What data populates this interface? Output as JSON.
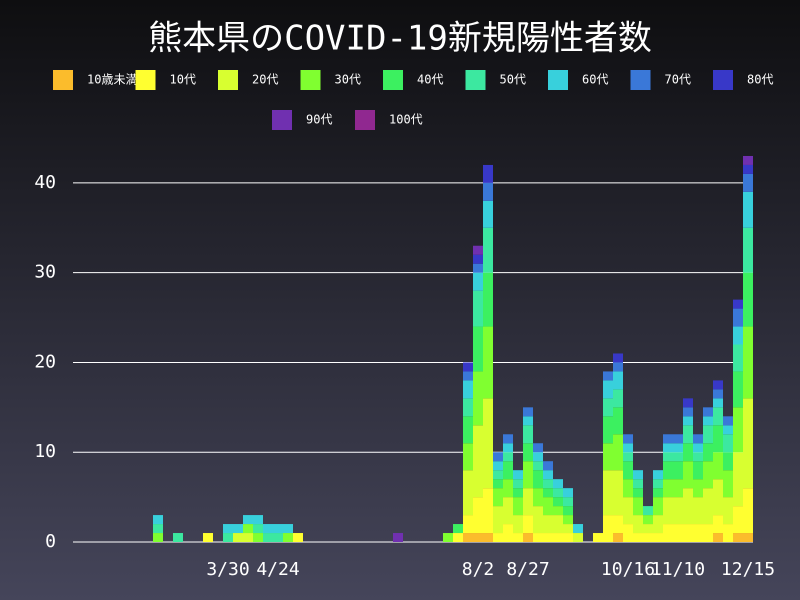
{
  "chart_data": {
    "type": "stacked-bar",
    "title": "熊本県のCOVID-19新規陽性者数",
    "categories": [
      null,
      null,
      null,
      null,
      null,
      null,
      null,
      null,
      null,
      null,
      null,
      null,
      null,
      null,
      null,
      "3/30",
      null,
      null,
      null,
      null,
      "4/24",
      null,
      null,
      null,
      null,
      null,
      null,
      null,
      null,
      null,
      null,
      null,
      null,
      null,
      null,
      null,
      null,
      null,
      null,
      null,
      "8/2",
      null,
      null,
      null,
      null,
      "8/27",
      null,
      null,
      null,
      null,
      null,
      null,
      null,
      null,
      null,
      "10/16",
      null,
      null,
      null,
      null,
      "11/10",
      null,
      null,
      null,
      null,
      null,
      null,
      "12/15"
    ],
    "ylim": [
      0,
      44
    ],
    "yticks": [
      0,
      10,
      20,
      30,
      40
    ],
    "grid": true,
    "series": [
      {
        "name": "10歳未満",
        "color": "#fbbc2c",
        "values": [
          0,
          0,
          0,
          0,
          0,
          0,
          0,
          0,
          0,
          0,
          0,
          0,
          0,
          0,
          0,
          0,
          0,
          0,
          0,
          0,
          0,
          0,
          0,
          0,
          0,
          0,
          0,
          0,
          0,
          0,
          0,
          0,
          0,
          0,
          0,
          0,
          0,
          0,
          0,
          1,
          1,
          1,
          0,
          0,
          0,
          1,
          0,
          0,
          0,
          0,
          0,
          0,
          0,
          0,
          1,
          0,
          0,
          0,
          0,
          0,
          0,
          0,
          0,
          0,
          1,
          0,
          1,
          1
        ]
      },
      {
        "name": "10代",
        "color": "#ffff30",
        "values": [
          0,
          0,
          0,
          0,
          0,
          0,
          0,
          0,
          0,
          0,
          0,
          0,
          0,
          1,
          0,
          0,
          0,
          0,
          0,
          0,
          0,
          0,
          1,
          0,
          0,
          0,
          0,
          0,
          0,
          0,
          0,
          0,
          0,
          0,
          0,
          0,
          0,
          0,
          1,
          2,
          4,
          5,
          1,
          2,
          1,
          2,
          1,
          1,
          1,
          1,
          0,
          0,
          1,
          3,
          2,
          2,
          1,
          1,
          1,
          2,
          2,
          2,
          2,
          2,
          2,
          2,
          3,
          5
        ]
      },
      {
        "name": "20代",
        "color": "#d8ff30",
        "values": [
          0,
          0,
          0,
          0,
          0,
          0,
          0,
          0,
          0,
          0,
          0,
          0,
          0,
          0,
          0,
          0,
          1,
          1,
          0,
          0,
          0,
          0,
          0,
          0,
          0,
          0,
          0,
          0,
          0,
          0,
          0,
          0,
          0,
          0,
          0,
          0,
          0,
          0,
          0,
          5,
          8,
          10,
          3,
          3,
          2,
          3,
          3,
          2,
          2,
          1,
          1,
          0,
          0,
          5,
          5,
          3,
          2,
          1,
          2,
          3,
          3,
          4,
          3,
          4,
          4,
          3,
          6,
          10
        ]
      },
      {
        "name": "30代",
        "color": "#80ff30",
        "values": [
          0,
          0,
          0,
          0,
          0,
          0,
          0,
          0,
          1,
          0,
          0,
          0,
          0,
          0,
          0,
          0,
          0,
          1,
          1,
          0,
          0,
          1,
          0,
          0,
          0,
          0,
          0,
          0,
          0,
          0,
          0,
          0,
          0,
          0,
          0,
          0,
          0,
          1,
          0,
          3,
          6,
          8,
          2,
          2,
          2,
          3,
          2,
          2,
          1,
          1,
          0,
          0,
          0,
          3,
          4,
          2,
          2,
          1,
          2,
          2,
          2,
          3,
          2,
          3,
          3,
          3,
          5,
          8
        ]
      },
      {
        "name": "40代",
        "color": "#3cf060",
        "values": [
          0,
          0,
          0,
          0,
          0,
          0,
          0,
          0,
          0,
          0,
          0,
          0,
          0,
          0,
          0,
          0,
          0,
          0,
          0,
          0,
          0,
          0,
          0,
          0,
          0,
          0,
          0,
          0,
          0,
          0,
          0,
          0,
          0,
          0,
          0,
          0,
          0,
          0,
          1,
          3,
          5,
          6,
          1,
          2,
          1,
          2,
          2,
          1,
          1,
          1,
          0,
          0,
          0,
          3,
          3,
          2,
          1,
          0,
          1,
          2,
          2,
          2,
          2,
          2,
          3,
          2,
          4,
          6
        ]
      },
      {
        "name": "50代",
        "color": "#3ce8a0",
        "values": [
          0,
          0,
          0,
          0,
          0,
          0,
          0,
          0,
          1,
          0,
          1,
          0,
          0,
          0,
          0,
          1,
          0,
          0,
          1,
          1,
          1,
          0,
          0,
          0,
          0,
          0,
          0,
          0,
          0,
          0,
          0,
          0,
          0,
          0,
          0,
          0,
          0,
          0,
          0,
          2,
          4,
          5,
          1,
          1,
          1,
          2,
          1,
          1,
          1,
          1,
          0,
          0,
          0,
          2,
          2,
          1,
          1,
          1,
          1,
          1,
          1,
          2,
          1,
          2,
          2,
          2,
          3,
          5
        ]
      },
      {
        "name": "60代",
        "color": "#38d0dc",
        "values": [
          0,
          0,
          0,
          0,
          0,
          0,
          0,
          0,
          1,
          0,
          0,
          0,
          0,
          0,
          0,
          1,
          1,
          1,
          1,
          1,
          1,
          1,
          0,
          0,
          0,
          0,
          0,
          0,
          0,
          0,
          0,
          0,
          0,
          0,
          0,
          0,
          0,
          0,
          0,
          2,
          2,
          3,
          1,
          1,
          1,
          1,
          1,
          1,
          1,
          1,
          1,
          0,
          0,
          2,
          2,
          1,
          1,
          0,
          1,
          1,
          1,
          1,
          1,
          1,
          1,
          1,
          2,
          4
        ]
      },
      {
        "name": "70代",
        "color": "#3a78d8",
        "values": [
          0,
          0,
          0,
          0,
          0,
          0,
          0,
          0,
          0,
          0,
          0,
          0,
          0,
          0,
          0,
          0,
          0,
          0,
          0,
          0,
          0,
          0,
          0,
          0,
          0,
          0,
          0,
          0,
          0,
          0,
          0,
          0,
          0,
          0,
          0,
          0,
          0,
          0,
          0,
          1,
          1,
          2,
          1,
          1,
          0,
          1,
          1,
          1,
          0,
          0,
          0,
          0,
          0,
          1,
          1,
          1,
          0,
          0,
          0,
          1,
          1,
          1,
          1,
          1,
          1,
          1,
          2,
          2
        ]
      },
      {
        "name": "80代",
        "color": "#3838c8",
        "values": [
          0,
          0,
          0,
          0,
          0,
          0,
          0,
          0,
          0,
          0,
          0,
          0,
          0,
          0,
          0,
          0,
          0,
          0,
          0,
          0,
          0,
          0,
          0,
          0,
          0,
          0,
          0,
          0,
          0,
          0,
          0,
          0,
          0,
          0,
          0,
          0,
          0,
          0,
          0,
          1,
          1,
          2,
          0,
          0,
          0,
          0,
          0,
          0,
          0,
          0,
          0,
          0,
          0,
          0,
          1,
          0,
          0,
          0,
          0,
          0,
          0,
          1,
          0,
          0,
          1,
          0,
          1,
          1
        ]
      },
      {
        "name": "90代",
        "color": "#7030b0",
        "values": [
          0,
          0,
          0,
          0,
          0,
          0,
          0,
          0,
          0,
          0,
          0,
          0,
          0,
          0,
          0,
          0,
          0,
          0,
          0,
          0,
          0,
          0,
          0,
          0,
          0,
          0,
          0,
          0,
          0,
          0,
          0,
          0,
          1,
          0,
          0,
          0,
          0,
          0,
          0,
          0,
          1,
          0,
          0,
          0,
          0,
          0,
          0,
          0,
          0,
          0,
          0,
          0,
          0,
          0,
          0,
          0,
          0,
          0,
          0,
          0,
          0,
          0,
          0,
          0,
          0,
          0,
          0,
          1
        ]
      },
      {
        "name": "100代",
        "color": "#902890",
        "values": [
          0,
          0,
          0,
          0,
          0,
          0,
          0,
          0,
          0,
          0,
          0,
          0,
          0,
          0,
          0,
          0,
          0,
          0,
          0,
          0,
          0,
          0,
          0,
          0,
          0,
          0,
          0,
          0,
          0,
          0,
          0,
          0,
          0,
          0,
          0,
          0,
          0,
          0,
          0,
          0,
          0,
          0,
          0,
          0,
          0,
          0,
          0,
          0,
          0,
          0,
          0,
          0,
          0,
          0,
          0,
          0,
          0,
          0,
          0,
          0,
          0,
          0,
          0,
          0,
          0,
          0,
          0,
          0
        ]
      }
    ]
  }
}
